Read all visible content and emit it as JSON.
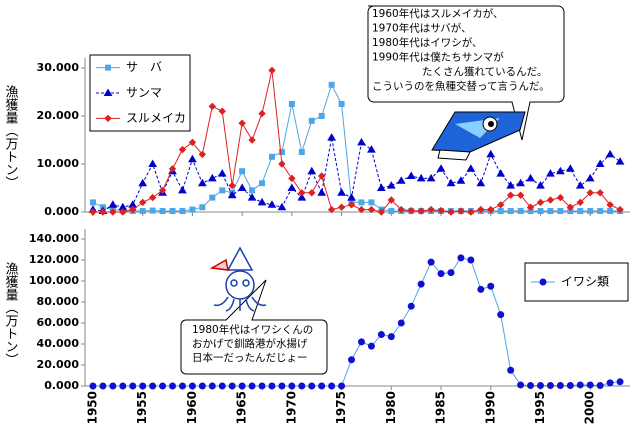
{
  "chart_data": [
    {
      "type": "line",
      "y_label": "漁獲量（万トン）",
      "x": [
        1950,
        1951,
        1952,
        1953,
        1954,
        1955,
        1956,
        1957,
        1958,
        1959,
        1960,
        1961,
        1962,
        1963,
        1964,
        1965,
        1966,
        1967,
        1968,
        1969,
        1970,
        1971,
        1972,
        1973,
        1974,
        1975,
        1976,
        1977,
        1978,
        1979,
        1980,
        1981,
        1982,
        1983,
        1984,
        1985,
        1986,
        1987,
        1988,
        1989,
        1990,
        1991,
        1992,
        1993,
        1994,
        1995,
        1996,
        1997,
        1998,
        1999,
        2000,
        2001,
        2002,
        2003
      ],
      "xlim": [
        1949.2,
        2004
      ],
      "ylim": [
        0,
        30
      ],
      "yticks": [
        {
          "value": 0,
          "label": "0.000"
        },
        {
          "value": 10,
          "label": "10.000"
        },
        {
          "value": 20,
          "label": "20.000"
        },
        {
          "value": 30,
          "label": "30.000"
        }
      ],
      "series": [
        {
          "name": "サ　バ",
          "color": "#4da6e8",
          "marker": "square",
          "dash": false,
          "values": [
            2,
            1,
            0.5,
            0.3,
            0.2,
            0.2,
            0.3,
            0.2,
            0.2,
            0.2,
            0.5,
            1,
            3,
            4.5,
            4,
            8.5,
            4.5,
            6,
            11.5,
            12.5,
            22.5,
            12.5,
            19,
            20,
            26.5,
            22.5,
            2,
            2,
            2,
            0.5,
            0.2,
            0.2,
            0.2,
            0.2,
            0.2,
            0.2,
            0.2,
            0.2,
            0.2,
            0.2,
            0.2,
            0.2,
            0.2,
            0.2,
            0.2,
            0.2,
            0.2,
            0.2,
            0.2,
            0.2,
            0.2,
            0.2,
            0.2,
            0.2
          ]
        },
        {
          "name": "サンマ",
          "color": "#0000cc",
          "marker": "triangle",
          "dash": true,
          "values": [
            0.5,
            0.2,
            1.5,
            1,
            1.5,
            6,
            10,
            4,
            8.5,
            4.5,
            11,
            6,
            7,
            8,
            3.5,
            5,
            3,
            2,
            1.5,
            1,
            5,
            3,
            8.5,
            4,
            15.5,
            4,
            3,
            14.5,
            13,
            5,
            5.5,
            6.5,
            7.5,
            7,
            7,
            9,
            6,
            6.5,
            9,
            6,
            12,
            8,
            5.5,
            6,
            7,
            5.5,
            8,
            8.5,
            9,
            5.5,
            7,
            10,
            12,
            10.5
          ]
        },
        {
          "name": "スルメイカ",
          "color": "#e02020",
          "marker": "diamond",
          "dash": false,
          "values": [
            0,
            0,
            0,
            0,
            0.5,
            2,
            3,
            4.5,
            9,
            13,
            14.5,
            12,
            22,
            21,
            5.5,
            18.5,
            15,
            20.5,
            29.5,
            10,
            7,
            4,
            4,
            7.5,
            0.5,
            1,
            1.5,
            0.5,
            0.5,
            0,
            2.5,
            0.5,
            0.3,
            0.2,
            0.5,
            0.3,
            0,
            0.2,
            0,
            0.5,
            0.5,
            1.5,
            3.5,
            3.5,
            1,
            2,
            2.5,
            3,
            1,
            2,
            4,
            4,
            1.5,
            0.5
          ]
        }
      ],
      "annotation": [
        "1960年代はスルメイカが、",
        "1970年代はサバが、",
        "1980年代はイワシが、",
        "1990年代は僕たちサンマが",
        "たくさん獲れているんだ。",
        "こういうのを魚種交替って言うんだ。"
      ]
    },
    {
      "type": "line",
      "y_label": "漁獲量（万トン）",
      "x": [
        1950,
        1951,
        1952,
        1953,
        1954,
        1955,
        1956,
        1957,
        1958,
        1959,
        1960,
        1961,
        1962,
        1963,
        1964,
        1965,
        1966,
        1967,
        1968,
        1969,
        1970,
        1971,
        1972,
        1973,
        1974,
        1975,
        1976,
        1977,
        1978,
        1979,
        1980,
        1981,
        1982,
        1983,
        1984,
        1985,
        1986,
        1987,
        1988,
        1989,
        1990,
        1991,
        1992,
        1993,
        1994,
        1995,
        1996,
        1997,
        1998,
        1999,
        2000,
        2001,
        2002,
        2003
      ],
      "xlim": [
        1949.2,
        2004
      ],
      "xticks": [
        1950,
        1955,
        1960,
        1965,
        1970,
        1975,
        1980,
        1985,
        1990,
        1995,
        2000
      ],
      "ylim": [
        0,
        140
      ],
      "yticks": [
        {
          "value": 0,
          "label": "0.000"
        },
        {
          "value": 20,
          "label": "20.000"
        },
        {
          "value": 40,
          "label": "40.000"
        },
        {
          "value": 60,
          "label": "60.000"
        },
        {
          "value": 80,
          "label": "80.000"
        },
        {
          "value": 100,
          "label": "100.000"
        },
        {
          "value": 120,
          "label": "120.000"
        },
        {
          "value": 140,
          "label": "140.000"
        }
      ],
      "series": [
        {
          "name": "イワシ類",
          "color": "#1010d0",
          "line_color": "#4da6e8",
          "marker": "circle",
          "dash": false,
          "values": [
            0,
            0,
            0,
            0,
            0,
            0,
            0,
            0,
            0,
            0,
            0,
            0,
            0,
            0,
            0,
            0,
            0,
            0,
            0,
            0,
            0,
            0,
            0,
            0,
            0,
            0,
            25,
            42,
            38,
            49,
            47,
            60,
            76,
            97,
            118,
            107,
            108,
            122,
            120,
            92,
            95,
            68,
            15,
            1,
            0.5,
            0.5,
            0.5,
            0.5,
            0.5,
            1,
            1,
            0.5,
            3,
            4
          ]
        }
      ],
      "annotation": [
        "1980年代はイワシくんの",
        "おかげで釧路港が水揚げ",
        "日本一だったんだじょー"
      ]
    }
  ]
}
